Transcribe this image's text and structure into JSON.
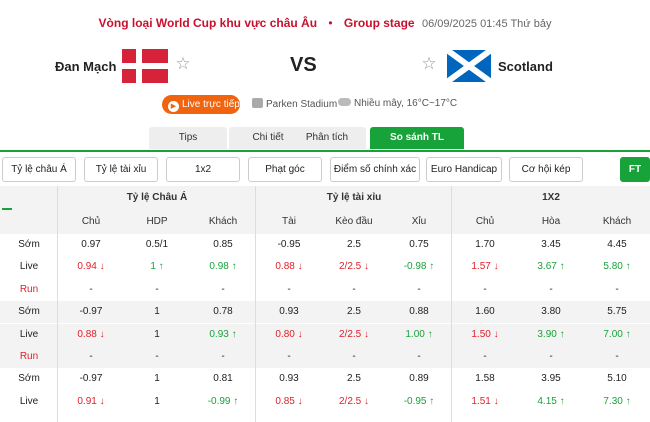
{
  "header": {
    "competition": "Vòng loại World Cup khu vực châu Âu",
    "separator": "•",
    "stage": "Group stage",
    "datetime": "06/09/2025 01:45 Thứ bảy"
  },
  "match": {
    "home_team": "Đan Mạch",
    "away_team": "Scotland",
    "vs": "VS",
    "star_glyph": "☆",
    "live_label": "Live trực tiếp",
    "stadium": "Parken Stadium",
    "weather": "Nhiều mây, 16°C~17°C"
  },
  "tabs": [
    "Tips",
    "Chi tiết",
    "Phân tích",
    "So sánh TL"
  ],
  "active_tab": "So sánh TL",
  "filters": [
    "Tỷ lệ châu Á",
    "Tỷ lệ tài xỉu",
    "1x2",
    "Phạt góc",
    "Điểm số chính xác",
    "Euro Handicap",
    "Cơ hội kép",
    "FT"
  ],
  "table": {
    "groups": [
      "Tỷ lệ Châu Á",
      "Tỷ lệ tài xỉu",
      "1X2"
    ],
    "columns": [
      "Chủ",
      "HDP",
      "Khách",
      "Tài",
      "Kèo đầu",
      "Xỉu",
      "Chủ",
      "Hòa",
      "Khách"
    ],
    "plus": "+",
    "rows": [
      {
        "label": "Sớm",
        "alt": false,
        "cells": [
          {
            "v": "0.97",
            "c": "n"
          },
          {
            "v": "0.5/1",
            "c": "n"
          },
          {
            "v": "0.85",
            "c": "n"
          },
          {
            "v": "-0.95",
            "c": "n"
          },
          {
            "v": "2.5",
            "c": "n"
          },
          {
            "v": "0.75",
            "c": "n"
          },
          {
            "v": "1.70",
            "c": "n"
          },
          {
            "v": "3.45",
            "c": "n"
          },
          {
            "v": "4.45",
            "c": "n"
          }
        ]
      },
      {
        "label": "Live",
        "alt": false,
        "cells": [
          {
            "v": "0.94 ↓",
            "c": "red"
          },
          {
            "v": "1 ↑",
            "c": "green"
          },
          {
            "v": "0.98 ↑",
            "c": "green"
          },
          {
            "v": "0.88 ↓",
            "c": "red"
          },
          {
            "v": "2/2.5 ↓",
            "c": "red"
          },
          {
            "v": "-0.98 ↑",
            "c": "green"
          },
          {
            "v": "1.57 ↓",
            "c": "red"
          },
          {
            "v": "3.67 ↑",
            "c": "green"
          },
          {
            "v": "5.80 ↑",
            "c": "green"
          }
        ]
      },
      {
        "label": "Run",
        "alt": false,
        "run": true,
        "cells": [
          {
            "v": "-",
            "c": "n"
          },
          {
            "v": "-",
            "c": "n"
          },
          {
            "v": "-",
            "c": "n"
          },
          {
            "v": "-",
            "c": "n"
          },
          {
            "v": "-",
            "c": "n"
          },
          {
            "v": "-",
            "c": "n"
          },
          {
            "v": "-",
            "c": "n"
          },
          {
            "v": "-",
            "c": "n"
          },
          {
            "v": "-",
            "c": "n"
          }
        ]
      },
      {
        "label": "Sớm",
        "alt": true,
        "cells": [
          {
            "v": "-0.97",
            "c": "n"
          },
          {
            "v": "1",
            "c": "n"
          },
          {
            "v": "0.78",
            "c": "n"
          },
          {
            "v": "0.93",
            "c": "n"
          },
          {
            "v": "2.5",
            "c": "n"
          },
          {
            "v": "0.88",
            "c": "n"
          },
          {
            "v": "1.60",
            "c": "n"
          },
          {
            "v": "3.80",
            "c": "n"
          },
          {
            "v": "5.75",
            "c": "n"
          }
        ]
      },
      {
        "label": "Live",
        "alt": true,
        "cells": [
          {
            "v": "0.88 ↓",
            "c": "red"
          },
          {
            "v": "1",
            "c": "n"
          },
          {
            "v": "0.93 ↑",
            "c": "green"
          },
          {
            "v": "0.80 ↓",
            "c": "red"
          },
          {
            "v": "2/2.5 ↓",
            "c": "red"
          },
          {
            "v": "1.00 ↑",
            "c": "green"
          },
          {
            "v": "1.50 ↓",
            "c": "red"
          },
          {
            "v": "3.90 ↑",
            "c": "green"
          },
          {
            "v": "7.00 ↑",
            "c": "green"
          }
        ]
      },
      {
        "label": "Run",
        "alt": true,
        "run": true,
        "cells": [
          {
            "v": "-",
            "c": "n"
          },
          {
            "v": "-",
            "c": "n"
          },
          {
            "v": "-",
            "c": "n"
          },
          {
            "v": "-",
            "c": "n"
          },
          {
            "v": "-",
            "c": "n"
          },
          {
            "v": "-",
            "c": "n"
          },
          {
            "v": "-",
            "c": "n"
          },
          {
            "v": "-",
            "c": "n"
          },
          {
            "v": "-",
            "c": "n"
          }
        ]
      },
      {
        "label": "Sớm",
        "alt": false,
        "cells": [
          {
            "v": "-0.97",
            "c": "n"
          },
          {
            "v": "1",
            "c": "n"
          },
          {
            "v": "0.81",
            "c": "n"
          },
          {
            "v": "0.93",
            "c": "n"
          },
          {
            "v": "2.5",
            "c": "n"
          },
          {
            "v": "0.89",
            "c": "n"
          },
          {
            "v": "1.58",
            "c": "n"
          },
          {
            "v": "3.95",
            "c": "n"
          },
          {
            "v": "5.10",
            "c": "n"
          }
        ]
      },
      {
        "label": "Live",
        "alt": false,
        "cells": [
          {
            "v": "0.91 ↓",
            "c": "red"
          },
          {
            "v": "1",
            "c": "n"
          },
          {
            "v": "-0.99 ↑",
            "c": "green"
          },
          {
            "v": "0.85 ↓",
            "c": "red"
          },
          {
            "v": "2/2.5 ↓",
            "c": "red"
          },
          {
            "v": "-0.95 ↑",
            "c": "green"
          },
          {
            "v": "1.51 ↓",
            "c": "red"
          },
          {
            "v": "4.15 ↑",
            "c": "green"
          },
          {
            "v": "7.30 ↑",
            "c": "green"
          }
        ]
      }
    ]
  },
  "colors": {
    "brand_red": "#c8102e",
    "accent_green": "#18a33a",
    "live_orange": "#f06410",
    "down_red": "#e0202a",
    "up_green": "#18a33a"
  },
  "icons": {
    "live": "play-icon",
    "stadium": "stadium-icon",
    "weather": "cloud-icon",
    "favorite": "star-icon",
    "expand": "plus-icon"
  }
}
